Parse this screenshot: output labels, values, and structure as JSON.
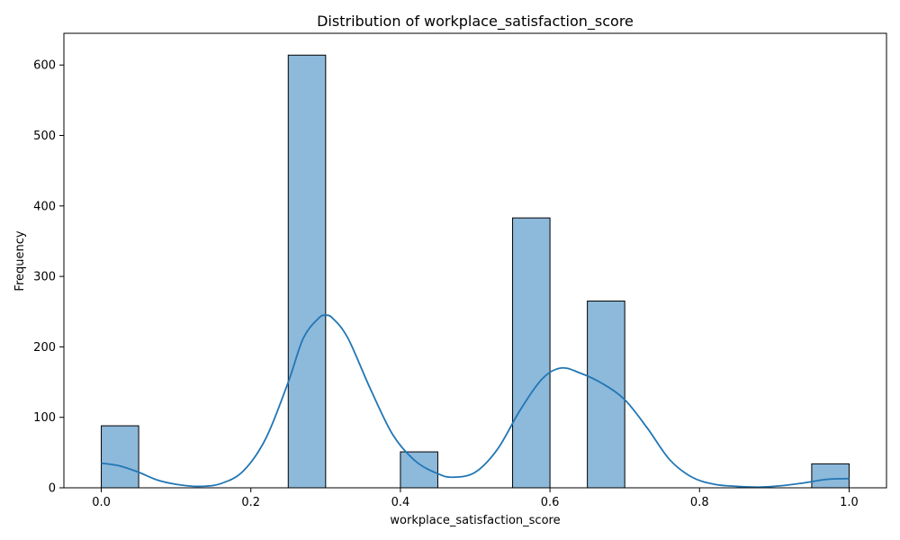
{
  "chart_data": {
    "type": "bar",
    "title": "Distribution of workplace_satisfaction_score",
    "xlabel": "workplace_satisfaction_score",
    "ylabel": "Frequency",
    "xlim": [
      -0.05,
      1.05
    ],
    "ylim": [
      0,
      645
    ],
    "x_ticks": [
      0.0,
      0.2,
      0.4,
      0.6,
      0.8,
      1.0
    ],
    "x_tick_labels": [
      "0.0",
      "0.2",
      "0.4",
      "0.6",
      "0.8",
      "1.0"
    ],
    "y_ticks": [
      0,
      100,
      200,
      300,
      400,
      500,
      600
    ],
    "y_tick_labels": [
      "0",
      "100",
      "200",
      "300",
      "400",
      "500",
      "600"
    ],
    "bin_width": 0.05,
    "bins": [
      {
        "x0": 0.0,
        "x1": 0.05,
        "count": 88
      },
      {
        "x0": 0.05,
        "x1": 0.1,
        "count": 0
      },
      {
        "x0": 0.1,
        "x1": 0.15,
        "count": 0
      },
      {
        "x0": 0.15,
        "x1": 0.2,
        "count": 0
      },
      {
        "x0": 0.2,
        "x1": 0.25,
        "count": 0
      },
      {
        "x0": 0.25,
        "x1": 0.3,
        "count": 614
      },
      {
        "x0": 0.3,
        "x1": 0.35,
        "count": 0
      },
      {
        "x0": 0.35,
        "x1": 0.4,
        "count": 0
      },
      {
        "x0": 0.4,
        "x1": 0.45,
        "count": 51
      },
      {
        "x0": 0.45,
        "x1": 0.5,
        "count": 0
      },
      {
        "x0": 0.5,
        "x1": 0.55,
        "count": 0
      },
      {
        "x0": 0.55,
        "x1": 0.6,
        "count": 383
      },
      {
        "x0": 0.6,
        "x1": 0.65,
        "count": 0
      },
      {
        "x0": 0.65,
        "x1": 0.7,
        "count": 265
      },
      {
        "x0": 0.7,
        "x1": 0.75,
        "count": 0
      },
      {
        "x0": 0.75,
        "x1": 0.8,
        "count": 0
      },
      {
        "x0": 0.8,
        "x1": 0.85,
        "count": 0
      },
      {
        "x0": 0.85,
        "x1": 0.9,
        "count": 0
      },
      {
        "x0": 0.9,
        "x1": 0.95,
        "count": 0
      },
      {
        "x0": 0.95,
        "x1": 1.0,
        "count": 34
      }
    ],
    "kde": {
      "x": [
        0.0,
        0.025,
        0.05,
        0.075,
        0.1,
        0.13,
        0.16,
        0.19,
        0.22,
        0.25,
        0.27,
        0.29,
        0.3,
        0.31,
        0.33,
        0.36,
        0.39,
        0.42,
        0.45,
        0.47,
        0.5,
        0.53,
        0.56,
        0.59,
        0.615,
        0.64,
        0.67,
        0.7,
        0.73,
        0.76,
        0.79,
        0.82,
        0.85,
        0.88,
        0.91,
        0.94,
        0.97,
        1.0
      ],
      "y": [
        35,
        31,
        22,
        11,
        5,
        2,
        6,
        24,
        70,
        150,
        212,
        240,
        245,
        240,
        212,
        140,
        75,
        38,
        20,
        15,
        22,
        55,
        110,
        155,
        170,
        163,
        148,
        125,
        85,
        40,
        15,
        5,
        2,
        1,
        3,
        7,
        12,
        13
      ]
    },
    "bar_fill": "#8db9db",
    "bar_edge": "#000000",
    "kde_color": "#2276b4",
    "legend": "none",
    "grid": false
  }
}
